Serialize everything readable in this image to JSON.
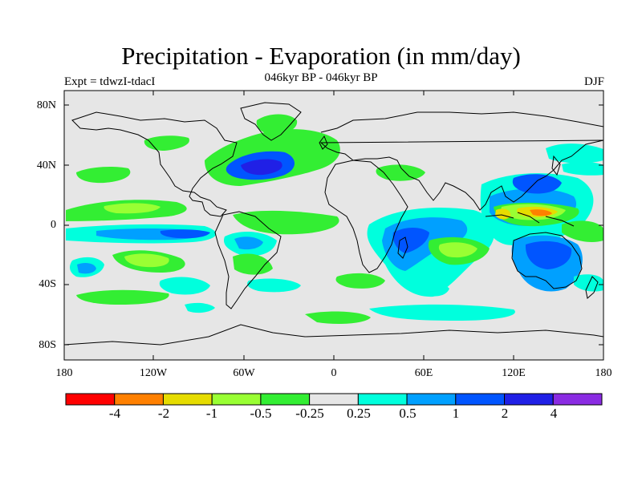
{
  "title": "Precipitation - Evaporation (in mm/day)",
  "subtitle": "046kyr BP - 046kyr BP",
  "left_label": "Expt = tdwzI-tdacI",
  "right_label": "DJF",
  "axes": {
    "lat_ticks": [
      "80N",
      "40N",
      "0",
      "40S",
      "80S"
    ],
    "lon_ticks": [
      "180",
      "120W",
      "60W",
      "0",
      "60E",
      "120E",
      "180"
    ]
  },
  "colorbar": {
    "labels": [
      "-4",
      "-2",
      "-1",
      "-0.5",
      "-0.25",
      "0.25",
      "0.5",
      "1",
      "2",
      "4"
    ],
    "colors": [
      "#ff0000",
      "#ff8000",
      "#e6dc00",
      "#99ff33",
      "#33ee33",
      "#e6e6e6",
      "#00ffdd",
      "#00a0ff",
      "#0055ff",
      "#2020e6",
      "#8a2be2"
    ]
  },
  "colors": {
    "land_background": "#e6e6e6",
    "coastline": "#000000"
  }
}
